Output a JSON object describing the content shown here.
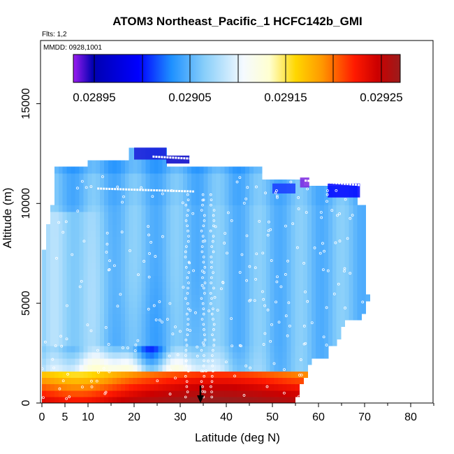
{
  "chart_data": {
    "type": "heatmap",
    "title": "ATOM3 Northeast_Pacific_1 HCFC142b_GMI",
    "annotations": {
      "flights": "Flts: 1,2",
      "dates": "MMDD: 0928,1001"
    },
    "xlabel": "Latitude (deg N)",
    "ylabel": "Altitude (m)",
    "xlim": [
      0,
      84
    ],
    "ylim": [
      0,
      17500
    ],
    "x_ticks": [
      0,
      5,
      10,
      20,
      30,
      40,
      50,
      60,
      70,
      80
    ],
    "y_ticks": [
      0,
      5000,
      10000,
      15000
    ],
    "colorbar": {
      "ticks": [
        0.02895,
        0.02905,
        0.02915,
        0.02925
      ],
      "tick_labels": [
        "0.02895",
        "0.02905",
        "0.02915",
        "0.02925"
      ],
      "range": [
        0.02889,
        0.0293
      ],
      "colors": [
        "#a020f0",
        "#0000b0",
        "#0000ff",
        "#1e90ff",
        "#00bfff",
        "#87cefa",
        "#e0f4ff",
        "#ffffe0",
        "#ffd700",
        "#ffa500",
        "#ff6600",
        "#ff0000",
        "#c00000",
        "#9b1c1c"
      ]
    },
    "marker": {
      "latitude": 34.5,
      "symbol": "down-arrow"
    },
    "field_description": "curtain of HCFC142b mixing ratio vs latitude and altitude",
    "grid": false
  }
}
